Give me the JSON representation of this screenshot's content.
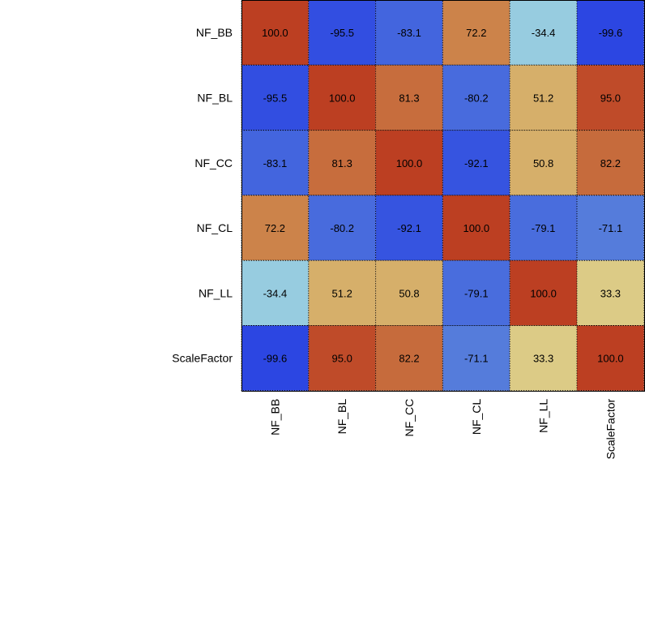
{
  "chart_data": {
    "type": "heatmap",
    "title": "",
    "xlabel": "",
    "ylabel": "",
    "x_categories": [
      "NF_BB",
      "NF_BL",
      "NF_CC",
      "NF_CL",
      "NF_LL",
      "ScaleFactor"
    ],
    "y_categories": [
      "NF_BB",
      "NF_BL",
      "NF_CC",
      "NF_CL",
      "NF_LL",
      "ScaleFactor"
    ],
    "values": [
      [
        100.0,
        -95.5,
        -83.1,
        72.2,
        -34.4,
        -99.6
      ],
      [
        -95.5,
        100.0,
        81.3,
        -80.2,
        51.2,
        95.0
      ],
      [
        -83.1,
        81.3,
        100.0,
        -92.1,
        50.8,
        82.2
      ],
      [
        72.2,
        -80.2,
        -92.1,
        100.0,
        -79.1,
        -71.1
      ],
      [
        -34.4,
        51.2,
        50.8,
        -79.1,
        100.0,
        33.3
      ],
      [
        -99.6,
        95.0,
        82.2,
        -71.1,
        33.3,
        100.0
      ]
    ],
    "value_format": "0.0",
    "zlim": [
      -100,
      100
    ],
    "grid": true,
    "legend": "none",
    "colormap": {
      "negative_end": "#2b45e2",
      "negative_mid": "#5f8ad9",
      "neutral_cool": "#98cde0",
      "neutral_warm": "#dccd88",
      "positive_mid": "#d3a15c",
      "positive_end": "#bc3f22"
    }
  }
}
